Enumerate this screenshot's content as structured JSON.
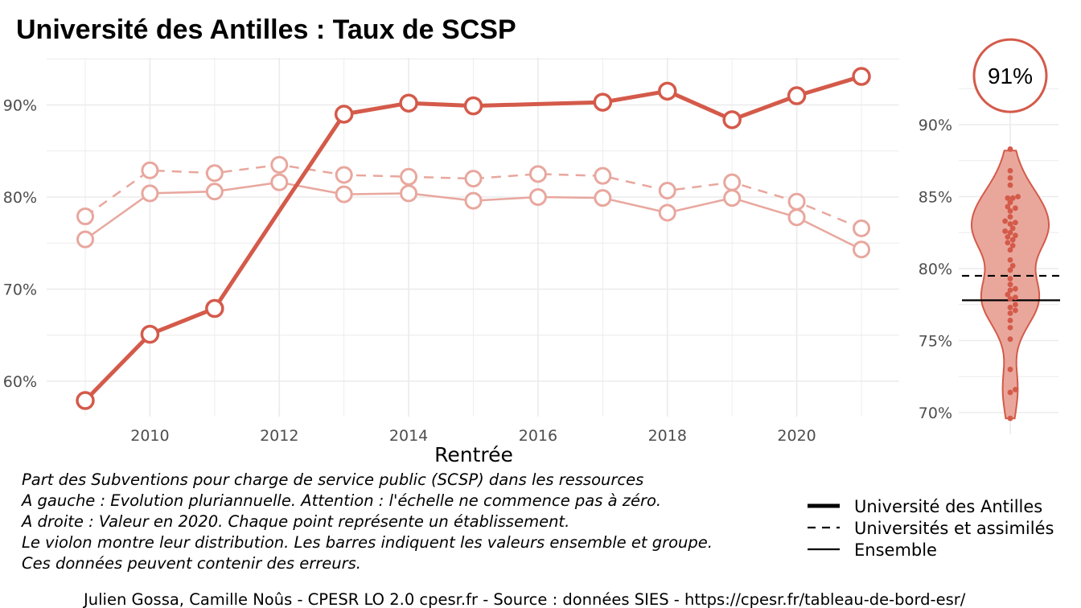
{
  "title": "Université des Antilles  :  Taux de SCSP",
  "colors": {
    "main": "#d45a4a",
    "light": "#e8a79e",
    "grid": "#ebebeb",
    "violin": "#e9a79c",
    "violin_stroke": "#d45a4a",
    "ensemble": "#000000"
  },
  "chart_data": [
    {
      "type": "line",
      "xlabel": "Rentrée",
      "ylabel": "",
      "xlim": [
        2009,
        2021
      ],
      "ylim": [
        56,
        95
      ],
      "x_ticks": [
        2010,
        2012,
        2014,
        2016,
        2018,
        2020
      ],
      "y_ticks": [
        60,
        70,
        80,
        90
      ],
      "y_tick_labels": [
        "60%",
        "70%",
        "80%",
        "90%"
      ],
      "grid": true,
      "x": [
        2009,
        2010,
        2011,
        2012,
        2013,
        2014,
        2015,
        2016,
        2017,
        2018,
        2019,
        2020,
        2021
      ],
      "series": [
        {
          "name": "Université des Antilles",
          "style": "solid-bold",
          "markers": [
            true,
            true,
            true,
            false,
            true,
            true,
            true,
            false,
            true,
            true,
            true,
            true,
            true
          ],
          "values": [
            57.9,
            65.1,
            67.9,
            78.5,
            89.0,
            90.2,
            89.9,
            90.1,
            90.3,
            91.5,
            88.4,
            91.0,
            93.1
          ]
        },
        {
          "name": "Universités et assimilés",
          "style": "dashed",
          "markers": [
            true,
            true,
            true,
            true,
            true,
            true,
            true,
            true,
            true,
            true,
            true,
            true,
            true
          ],
          "values": [
            77.9,
            82.9,
            82.6,
            83.5,
            82.4,
            82.2,
            82.0,
            82.5,
            82.3,
            80.7,
            81.6,
            79.5,
            76.6
          ]
        },
        {
          "name": "Ensemble",
          "style": "solid-thin",
          "markers": [
            true,
            true,
            true,
            true,
            true,
            true,
            true,
            true,
            true,
            true,
            true,
            true,
            true
          ],
          "values": [
            75.4,
            80.4,
            80.6,
            81.6,
            80.3,
            80.4,
            79.6,
            80.0,
            79.9,
            78.3,
            79.9,
            77.8,
            74.3
          ]
        }
      ]
    },
    {
      "type": "violin",
      "ylim": [
        69,
        95
      ],
      "y_ticks": [
        70,
        75,
        80,
        85,
        90
      ],
      "y_tick_labels": [
        "70%",
        "75%",
        "80%",
        "85%",
        "90%"
      ],
      "highlight_value": 91,
      "highlight_label": "91%",
      "group_value": 79.5,
      "ensemble_value": 77.8,
      "points": [
        88.3,
        86.8,
        86.3,
        85.8,
        85.0,
        84.9,
        84.9,
        84.6,
        84.3,
        84.2,
        84.0,
        83.6,
        83.3,
        83.2,
        83.1,
        82.8,
        82.6,
        82.5,
        82.3,
        82.2,
        82.0,
        81.8,
        81.6,
        81.3,
        80.6,
        80.2,
        79.9,
        79.3,
        78.9,
        78.6,
        78.5,
        78.2,
        78.0,
        77.9,
        77.5,
        77.3,
        77.1,
        76.9,
        76.4,
        75.9,
        75.1,
        73.0,
        71.6,
        71.4,
        69.6
      ]
    }
  ],
  "caption_lines": [
    "Part des Subventions pour charge de service public (SCSP) dans les ressources",
    "A gauche : Evolution pluriannuelle. Attention : l'échelle ne commence pas à zéro.",
    "A droite : Valeur en 2020. Chaque point représente un établissement.",
    "Le violon montre leur distribution. Les barres indiquent les valeurs ensemble et groupe.",
    "Ces données peuvent contenir des erreurs."
  ],
  "legend": [
    {
      "label": "Université des Antilles",
      "style": "solid-bold"
    },
    {
      "label": "Universités et assimilés",
      "style": "dashed"
    },
    {
      "label": "Ensemble",
      "style": "solid-thin"
    }
  ],
  "footer": "Julien Gossa, Camille Noûs - CPESR LO 2.0 cpesr.fr - Source : données SIES - https://cpesr.fr/tableau-de-bord-esr/"
}
